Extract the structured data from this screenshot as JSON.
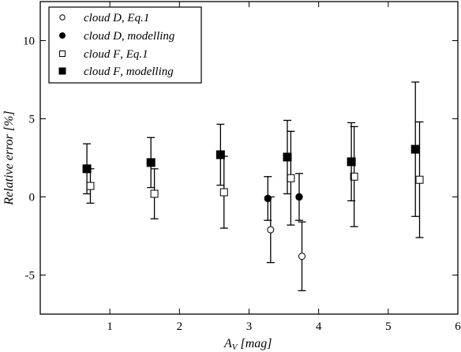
{
  "chart_data": {
    "type": "scatter",
    "xlabel": "A_V [mag]",
    "xlabel_main": "A",
    "xlabel_sub": "V",
    "xlabel_unit": " [mag]",
    "ylabel": "Relative error [%]",
    "xlim": [
      0,
      6
    ],
    "ylim": [
      -7.5,
      12.5
    ],
    "xticks": [
      1,
      2,
      3,
      4,
      5,
      6
    ],
    "yticks": [
      -5,
      0,
      5,
      10
    ],
    "xtick_labels": [
      "1",
      "2",
      "3",
      "4",
      "5",
      "6"
    ],
    "ytick_labels": [
      "-5",
      "0",
      "5",
      "10"
    ],
    "grid": false,
    "legend_position": "top-left",
    "series": [
      {
        "name": "cloud D, Eq.1",
        "name_parts": [
          "cloud D",
          ", ",
          "Eq.1"
        ],
        "marker": "circle-open",
        "points": [
          {
            "x": 3.31,
            "y": -2.1,
            "yerr_low": 2.1,
            "yerr_high": 2.1
          },
          {
            "x": 3.76,
            "y": -3.8,
            "yerr_low": 2.2,
            "yerr_high": 2.2
          }
        ]
      },
      {
        "name": "cloud D, modelling",
        "name_parts": [
          "cloud D",
          ", ",
          "modelling"
        ],
        "marker": "circle-filled",
        "points": [
          {
            "x": 3.27,
            "y": -0.1,
            "yerr_low": 1.4,
            "yerr_high": 1.4
          },
          {
            "x": 3.72,
            "y": 0.0,
            "yerr_low": 1.5,
            "yerr_high": 1.5
          }
        ]
      },
      {
        "name": "cloud F, Eq.1",
        "name_parts": [
          "cloud F",
          ", ",
          "Eq.1"
        ],
        "marker": "square-open",
        "points": [
          {
            "x": 0.72,
            "y": 0.7,
            "yerr_low": 1.1,
            "yerr_high": 1.1
          },
          {
            "x": 1.64,
            "y": 0.2,
            "yerr_low": 1.6,
            "yerr_high": 1.6
          },
          {
            "x": 2.64,
            "y": 0.3,
            "yerr_low": 2.3,
            "yerr_high": 2.3
          },
          {
            "x": 3.6,
            "y": 1.2,
            "yerr_low": 3.0,
            "yerr_high": 3.0
          },
          {
            "x": 4.51,
            "y": 1.3,
            "yerr_low": 3.2,
            "yerr_high": 3.2
          },
          {
            "x": 5.45,
            "y": 1.1,
            "yerr_low": 3.7,
            "yerr_high": 3.7
          }
        ]
      },
      {
        "name": "cloud F, modelling",
        "name_parts": [
          "cloud F",
          ", ",
          "modelling"
        ],
        "marker": "square-filled",
        "points": [
          {
            "x": 0.67,
            "y": 1.8,
            "yerr_low": 1.6,
            "yerr_high": 1.6
          },
          {
            "x": 1.59,
            "y": 2.2,
            "yerr_low": 1.6,
            "yerr_high": 1.6
          },
          {
            "x": 2.59,
            "y": 2.7,
            "yerr_low": 1.95,
            "yerr_high": 1.95
          },
          {
            "x": 3.55,
            "y": 2.55,
            "yerr_low": 2.35,
            "yerr_high": 2.35
          },
          {
            "x": 4.47,
            "y": 2.25,
            "yerr_low": 2.5,
            "yerr_high": 2.5
          },
          {
            "x": 5.39,
            "y": 3.05,
            "yerr_low": 4.3,
            "yerr_high": 4.3
          }
        ]
      }
    ]
  }
}
